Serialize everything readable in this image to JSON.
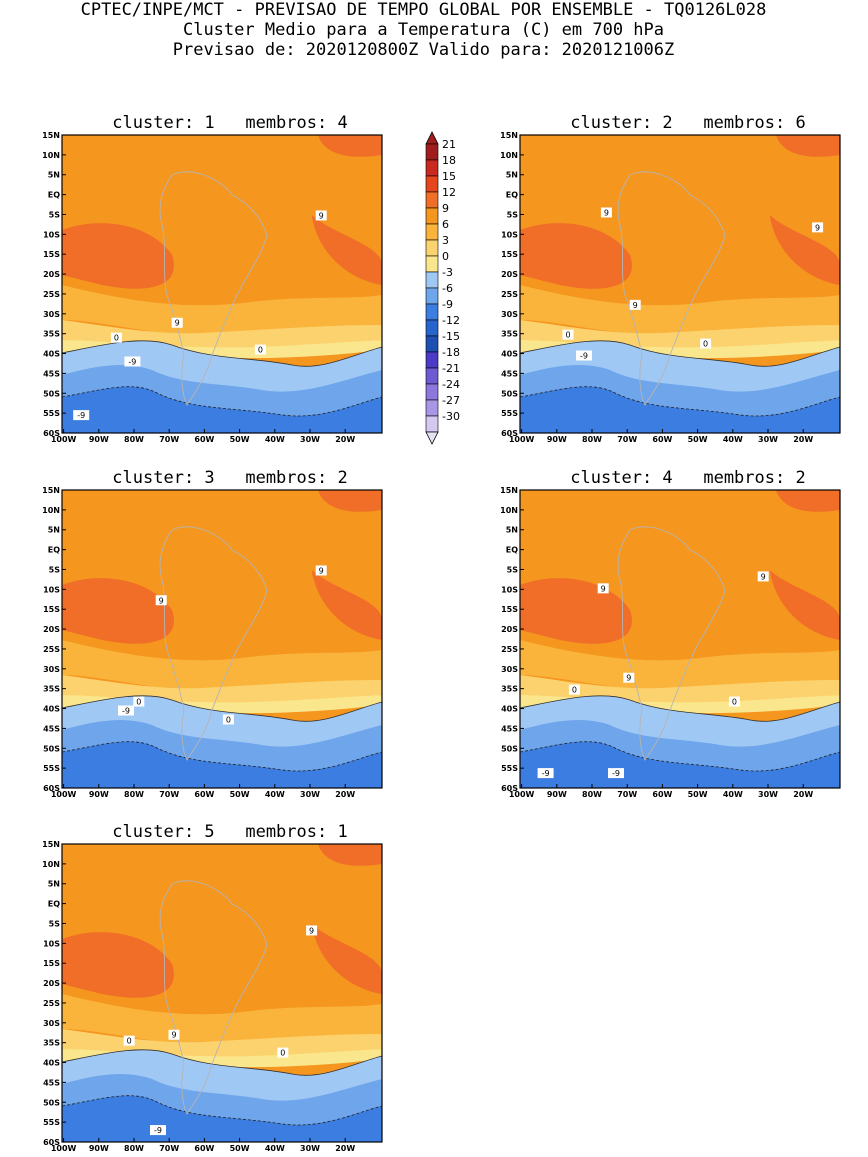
{
  "header": {
    "line1": "CPTEC/INPE/MCT - PREVISAO DE TEMPO GLOBAL POR ENSEMBLE - TQ0126L028",
    "line2": "Cluster Medio para a Temperatura (C) em 700 hPa",
    "line3": "Previsao de: 2020120800Z   Valido para: 2020121006Z"
  },
  "axes": {
    "lat_labels": [
      "15N",
      "10N",
      "5N",
      "EQ",
      "5S",
      "10S",
      "15S",
      "20S",
      "25S",
      "30S",
      "35S",
      "40S",
      "45S",
      "50S",
      "55S",
      "60S"
    ],
    "lon_labels": [
      "100W",
      "90W",
      "80W",
      "70W",
      "60W",
      "50W",
      "40W",
      "30W",
      "20W"
    ]
  },
  "colorbar": {
    "labels": [
      "21",
      "18",
      "15",
      "12",
      "9",
      "6",
      "3",
      "0",
      "-3",
      "-6",
      "-9",
      "-12",
      "-15",
      "-18",
      "-21",
      "-24",
      "-27",
      "-30"
    ],
    "colors": [
      "#a01e1e",
      "#c8281e",
      "#e6461e",
      "#f06e28",
      "#f5961e",
      "#fab43c",
      "#fcd26e",
      "#fae68c",
      "#a0c8f5",
      "#6ea5eb",
      "#3c7de1",
      "#2864cd",
      "#1e50b4",
      "#4b3cc8",
      "#6e5ad2",
      "#8c78dc",
      "#aa96e6",
      "#d2c8f0"
    ]
  },
  "panels": [
    {
      "title": "cluster: 1   membros: 4",
      "labels": [
        "9",
        "9",
        "0",
        "0",
        "-9",
        "-9"
      ]
    },
    {
      "title": "cluster: 2   membros: 6",
      "labels": [
        "9",
        "9",
        "9",
        "0",
        "0",
        "-9"
      ]
    },
    {
      "title": "cluster: 3   membros: 2",
      "labels": [
        "9",
        "9",
        "0",
        "0",
        "-9"
      ]
    },
    {
      "title": "cluster: 4   membros: 2",
      "labels": [
        "9",
        "9",
        "9",
        "0",
        "0",
        "-9",
        "-9"
      ]
    },
    {
      "title": "cluster: 5   membros: 1",
      "labels": [
        "9",
        "9",
        "0",
        "0",
        "-9"
      ]
    }
  ]
}
